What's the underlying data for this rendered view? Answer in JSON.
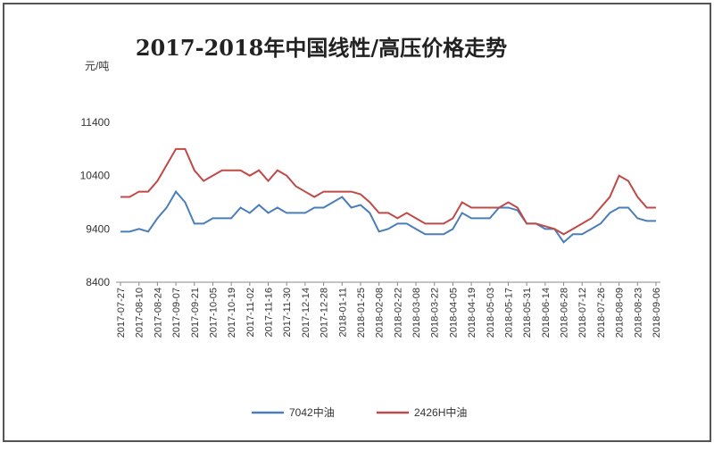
{
  "chart_data": {
    "type": "line",
    "title": "2017-2018年中国线性/高压价格走势",
    "y_label": "元/吨",
    "categories": [
      "2017-07-27",
      null,
      "2017-08-10",
      null,
      "2017-08-24",
      null,
      "2017-09-07",
      null,
      "2017-09-21",
      null,
      "2017-10-05",
      null,
      "2017-10-19",
      null,
      "2017-11-02",
      null,
      "2017-11-16",
      null,
      "2017-11-30",
      null,
      "2017-12-14",
      null,
      "2017-12-28",
      null,
      "2018-01-11",
      null,
      "2018-01-25",
      null,
      "2018-02-08",
      null,
      "2018-02-22",
      null,
      "2018-03-08",
      null,
      "2018-03-22",
      null,
      "2018-04-05",
      null,
      "2018-04-19",
      null,
      "2018-05-03",
      null,
      "2018-05-17",
      null,
      "2018-05-31",
      null,
      "2018-06-14",
      null,
      "2018-06-28",
      null,
      "2018-07-12",
      null,
      "2018-07-26",
      null,
      "2018-08-09",
      null,
      "2018-08-23",
      null,
      "2018-09-06"
    ],
    "series": [
      {
        "name": "7042中油",
        "color": "#4a7ebb",
        "values": [
          9350,
          9350,
          9400,
          9350,
          9600,
          9800,
          10100,
          9900,
          9500,
          9500,
          9600,
          9600,
          9600,
          9800,
          9700,
          9850,
          9700,
          9800,
          9700,
          9700,
          9700,
          9800,
          9800,
          9900,
          10000,
          9800,
          9850,
          9700,
          9350,
          9400,
          9500,
          9500,
          9400,
          9300,
          9300,
          9300,
          9400,
          9700,
          9600,
          9600,
          9600,
          9800,
          9800,
          9750,
          9500,
          9500,
          9400,
          9400,
          9150,
          9300,
          9300,
          9400,
          9500,
          9700,
          9800,
          9800,
          9600,
          9550,
          9550
        ]
      },
      {
        "name": "2426H中油",
        "color": "#be4b48",
        "values": [
          10000,
          10000,
          10100,
          10100,
          10300,
          10600,
          10900,
          10900,
          10500,
          10300,
          10400,
          10500,
          10500,
          10500,
          10400,
          10500,
          10300,
          10500,
          10400,
          10200,
          10100,
          10000,
          10100,
          10100,
          10100,
          10100,
          10050,
          9900,
          9700,
          9700,
          9600,
          9700,
          9600,
          9500,
          9500,
          9500,
          9600,
          9900,
          9800,
          9800,
          9800,
          9800,
          9900,
          9800,
          9500,
          9500,
          9450,
          9400,
          9300,
          9400,
          9500,
          9600,
          9800,
          10000,
          10400,
          10300,
          10000,
          9800,
          9800
        ]
      }
    ],
    "ylim": [
      8400,
      11400
    ],
    "yticks": [
      8400,
      9400,
      10400,
      11400
    ],
    "grid": false,
    "legend": "bottom"
  }
}
